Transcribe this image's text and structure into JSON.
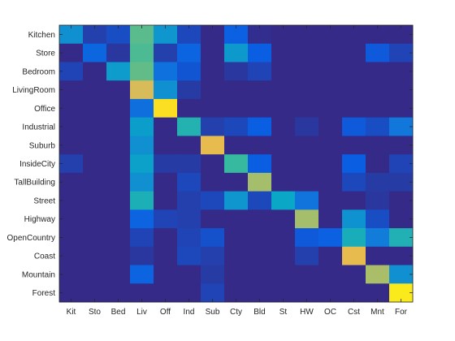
{
  "chart_data": {
    "type": "heatmap",
    "title": "",
    "xlabel": "",
    "ylabel": "",
    "colormap": "parula",
    "value_range": [
      0,
      1
    ],
    "x_categories": [
      "Kit",
      "Sto",
      "Bed",
      "Liv",
      "Off",
      "Ind",
      "Sub",
      "Cty",
      "Bld",
      "St",
      "HW",
      "OC",
      "Cst",
      "Mnt",
      "For"
    ],
    "y_categories": [
      "Kitchen",
      "Store",
      "Bedroom",
      "LivingRoom",
      "Office",
      "Industrial",
      "Suburb",
      "InsideCity",
      "TallBuilding",
      "Street",
      "Highway",
      "OpenCountry",
      "Coast",
      "Mountain",
      "Forest"
    ],
    "matrix": [
      [
        0.3,
        0.05,
        0.08,
        0.55,
        0.32,
        0.07,
        0.0,
        0.13,
        0.01,
        0.0,
        0.0,
        0.0,
        0.0,
        0.0,
        0.0
      ],
      [
        0.0,
        0.15,
        0.03,
        0.53,
        0.05,
        0.14,
        0.0,
        0.33,
        0.12,
        0.0,
        0.0,
        0.0,
        0.0,
        0.11,
        0.06
      ],
      [
        0.06,
        0.0,
        0.34,
        0.56,
        0.19,
        0.1,
        0.0,
        0.03,
        0.06,
        0.0,
        0.0,
        0.0,
        0.0,
        0.0,
        0.0
      ],
      [
        0.0,
        0.0,
        0.0,
        0.75,
        0.3,
        0.04,
        0.0,
        0.0,
        0.0,
        0.0,
        0.0,
        0.0,
        0.0,
        0.0,
        0.0
      ],
      [
        0.0,
        0.0,
        0.0,
        0.18,
        0.92,
        0.0,
        0.0,
        0.0,
        0.0,
        0.0,
        0.0,
        0.0,
        0.0,
        0.0,
        0.0
      ],
      [
        0.0,
        0.0,
        0.0,
        0.35,
        0.0,
        0.45,
        0.05,
        0.07,
        0.12,
        0.0,
        0.03,
        0.0,
        0.11,
        0.08,
        0.21
      ],
      [
        0.0,
        0.0,
        0.0,
        0.3,
        0.0,
        0.0,
        0.78,
        0.0,
        0.0,
        0.0,
        0.0,
        0.0,
        0.0,
        0.0,
        0.0
      ],
      [
        0.05,
        0.0,
        0.0,
        0.36,
        0.04,
        0.04,
        0.0,
        0.5,
        0.12,
        0.0,
        0.0,
        0.0,
        0.12,
        0.0,
        0.06
      ],
      [
        0.0,
        0.0,
        0.0,
        0.3,
        0.0,
        0.07,
        0.0,
        0.0,
        0.66,
        0.0,
        0.0,
        0.0,
        0.07,
        0.04,
        0.04
      ],
      [
        0.0,
        0.0,
        0.0,
        0.43,
        0.0,
        0.05,
        0.07,
        0.32,
        0.07,
        0.38,
        0.2,
        0.0,
        0.0,
        0.03,
        0.0
      ],
      [
        0.0,
        0.0,
        0.0,
        0.14,
        0.06,
        0.05,
        0.0,
        0.0,
        0.0,
        0.0,
        0.66,
        0.0,
        0.31,
        0.08,
        0.0
      ],
      [
        0.0,
        0.0,
        0.0,
        0.06,
        0.0,
        0.06,
        0.09,
        0.0,
        0.0,
        0.0,
        0.11,
        0.13,
        0.42,
        0.23,
        0.44
      ],
      [
        0.0,
        0.0,
        0.0,
        0.03,
        0.0,
        0.07,
        0.05,
        0.0,
        0.0,
        0.0,
        0.05,
        0.0,
        0.78,
        0.0,
        0.0
      ],
      [
        0.0,
        0.0,
        0.0,
        0.14,
        0.0,
        0.0,
        0.04,
        0.0,
        0.0,
        0.0,
        0.0,
        0.0,
        0.0,
        0.67,
        0.3
      ],
      [
        0.0,
        0.0,
        0.0,
        0.0,
        0.0,
        0.0,
        0.06,
        0.0,
        0.0,
        0.0,
        0.0,
        0.0,
        0.0,
        0.0,
        0.95
      ]
    ]
  }
}
